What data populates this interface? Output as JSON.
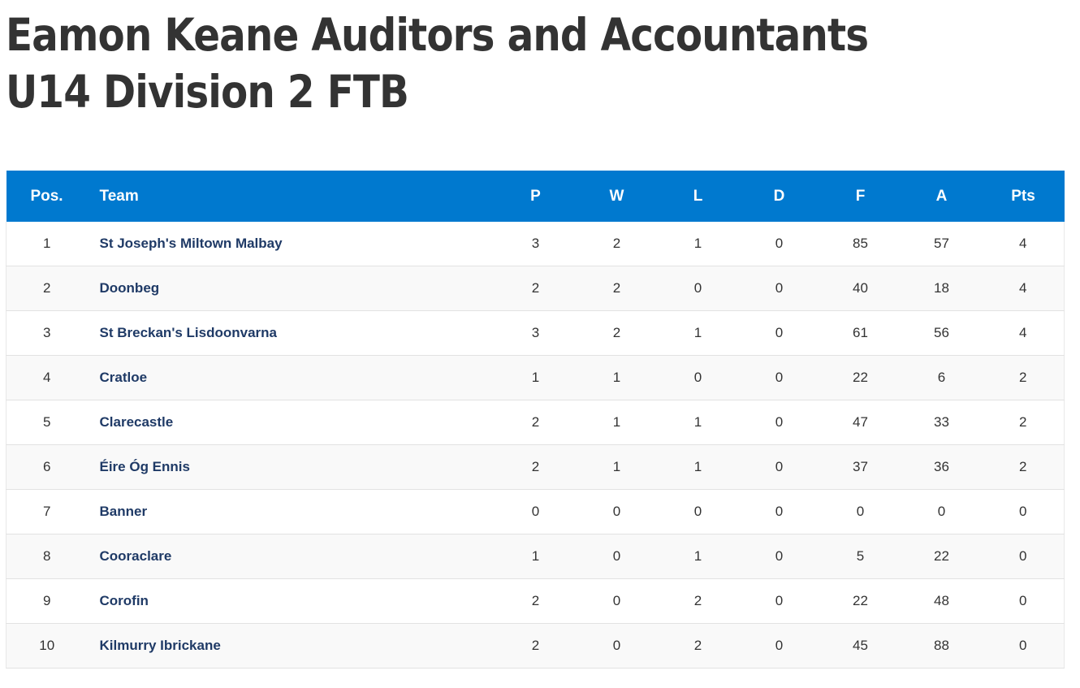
{
  "page": {
    "title": "Eamon Keane Auditors and Accountants U14 Division 2 FTB"
  },
  "colors": {
    "header_bg": "#0079cf",
    "team_link": "#1f3a66",
    "row_alt": "#f9f9f9"
  },
  "table": {
    "headers": {
      "pos": "Pos.",
      "team": "Team",
      "p": "P",
      "w": "W",
      "l": "L",
      "d": "D",
      "f": "F",
      "a": "A",
      "pts": "Pts"
    },
    "rows": [
      {
        "pos": "1",
        "team": "St Joseph's Miltown Malbay",
        "p": "3",
        "w": "2",
        "l": "1",
        "d": "0",
        "f": "85",
        "a": "57",
        "pts": "4"
      },
      {
        "pos": "2",
        "team": "Doonbeg",
        "p": "2",
        "w": "2",
        "l": "0",
        "d": "0",
        "f": "40",
        "a": "18",
        "pts": "4"
      },
      {
        "pos": "3",
        "team": "St Breckan's Lisdoonvarna",
        "p": "3",
        "w": "2",
        "l": "1",
        "d": "0",
        "f": "61",
        "a": "56",
        "pts": "4"
      },
      {
        "pos": "4",
        "team": "Cratloe",
        "p": "1",
        "w": "1",
        "l": "0",
        "d": "0",
        "f": "22",
        "a": "6",
        "pts": "2"
      },
      {
        "pos": "5",
        "team": "Clarecastle",
        "p": "2",
        "w": "1",
        "l": "1",
        "d": "0",
        "f": "47",
        "a": "33",
        "pts": "2"
      },
      {
        "pos": "6",
        "team": "Éire Óg Ennis",
        "p": "2",
        "w": "1",
        "l": "1",
        "d": "0",
        "f": "37",
        "a": "36",
        "pts": "2"
      },
      {
        "pos": "7",
        "team": "Banner",
        "p": "0",
        "w": "0",
        "l": "0",
        "d": "0",
        "f": "0",
        "a": "0",
        "pts": "0"
      },
      {
        "pos": "8",
        "team": "Cooraclare",
        "p": "1",
        "w": "0",
        "l": "1",
        "d": "0",
        "f": "5",
        "a": "22",
        "pts": "0"
      },
      {
        "pos": "9",
        "team": "Corofin",
        "p": "2",
        "w": "0",
        "l": "2",
        "d": "0",
        "f": "22",
        "a": "48",
        "pts": "0"
      },
      {
        "pos": "10",
        "team": "Kilmurry Ibrickane",
        "p": "2",
        "w": "0",
        "l": "2",
        "d": "0",
        "f": "45",
        "a": "88",
        "pts": "0"
      }
    ]
  }
}
